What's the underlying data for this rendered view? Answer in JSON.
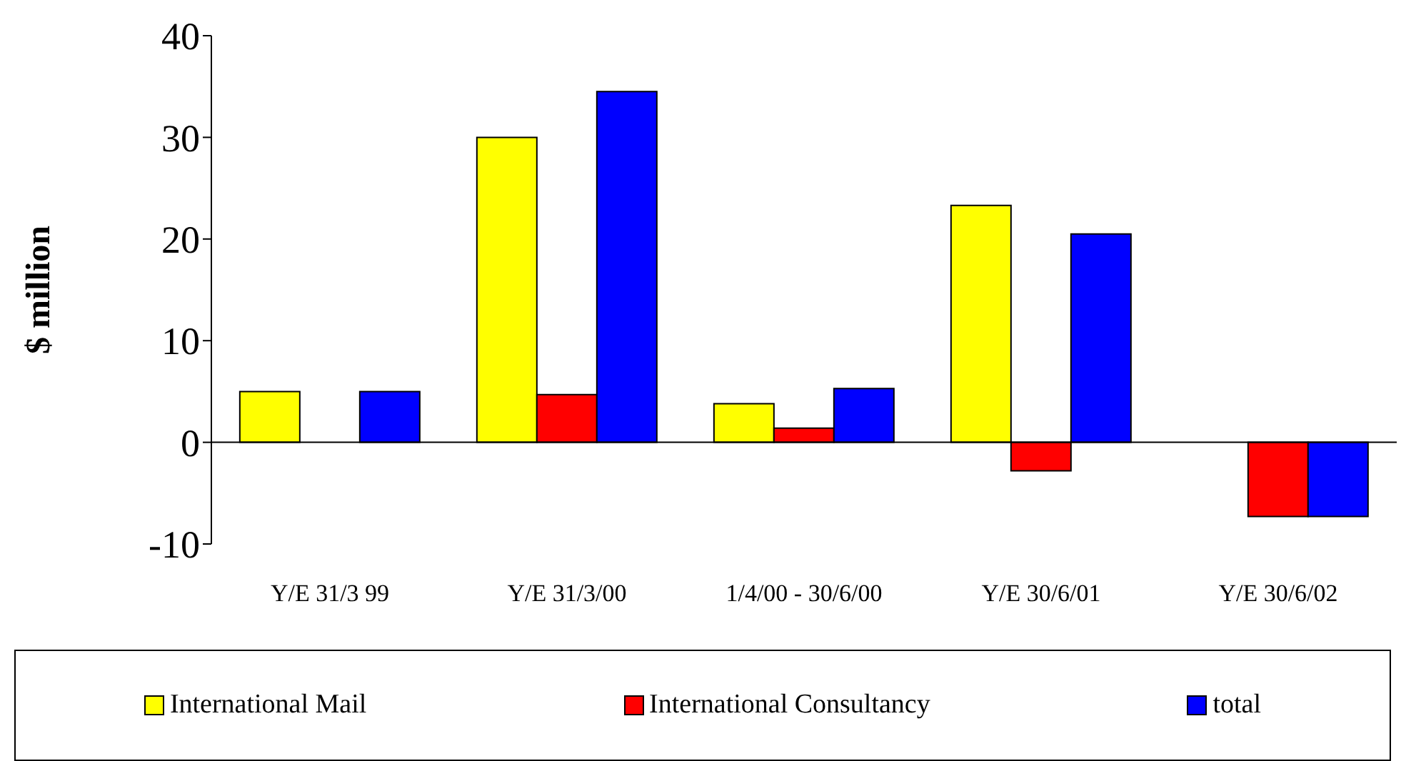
{
  "chart_data": {
    "type": "bar",
    "ylabel": "$ million",
    "categories": [
      "Y/E 31/3 99",
      "Y/E 31/3/00",
      "1/4/00 - 30/6/00",
      "Y/E 30/6/01",
      "Y/E 30/6/02"
    ],
    "series": [
      {
        "name": "International Mail",
        "color": "#ffff00",
        "values": [
          5,
          30,
          3.8,
          23.3,
          null
        ]
      },
      {
        "name": "International Consultancy",
        "color": "#ff0000",
        "values": [
          null,
          4.7,
          1.4,
          -2.8,
          -7.3
        ]
      },
      {
        "name": "total",
        "color": "#0000ff",
        "values": [
          5,
          34.5,
          5.3,
          20.5,
          -7.3
        ]
      }
    ],
    "ylim": [
      -10,
      40
    ],
    "yticks": [
      -10,
      0,
      10,
      20,
      30,
      40
    ],
    "legend": "bottom"
  }
}
